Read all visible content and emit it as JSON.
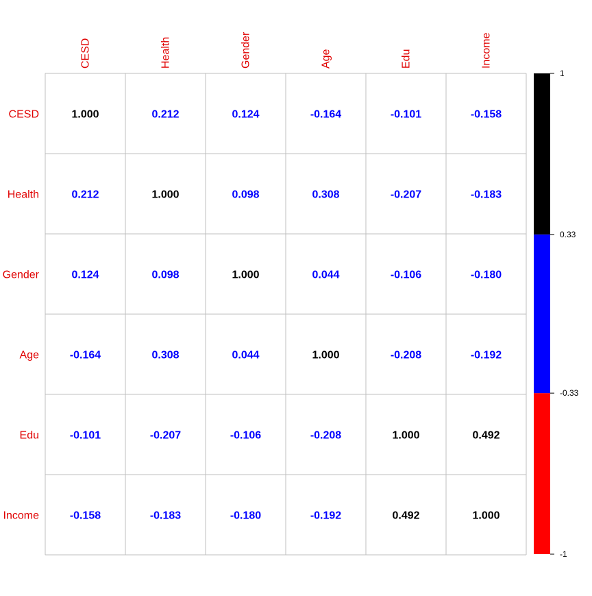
{
  "chart_data": {
    "type": "heatmap",
    "variables": [
      "CESD",
      "Health",
      "Gender",
      "Age",
      "Edu",
      "Income"
    ],
    "matrix": [
      [
        "1.000",
        "0.212",
        "0.124",
        "-0.164",
        "-0.101",
        "-0.158"
      ],
      [
        "0.212",
        "1.000",
        "0.098",
        "0.308",
        "-0.207",
        "-0.183"
      ],
      [
        "0.124",
        "0.098",
        "1.000",
        "0.044",
        "-0.106",
        "-0.180"
      ],
      [
        "-0.164",
        "0.308",
        "0.044",
        "1.000",
        "-0.208",
        "-0.192"
      ],
      [
        "-0.101",
        "-0.207",
        "-0.106",
        "-0.208",
        "1.000",
        "0.492"
      ],
      [
        "-0.158",
        "-0.183",
        "-0.180",
        "-0.192",
        "0.492",
        "1.000"
      ]
    ],
    "colorbar": {
      "range": [
        -1,
        1
      ],
      "breaks": [
        -1,
        -0.33,
        0.33,
        1
      ],
      "tick_labels": [
        "-1",
        "-0.33",
        "0.33",
        "1"
      ],
      "colors": [
        "#ff0000",
        "#0000ff",
        "#000000"
      ]
    },
    "label_color": "#e00000",
    "grid_color": "#bfbfbf"
  }
}
